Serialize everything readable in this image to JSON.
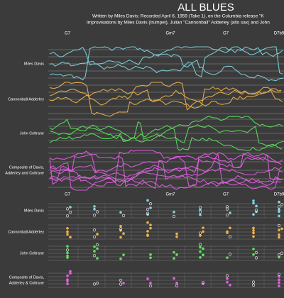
{
  "header": {
    "title": "ALL BLUES",
    "subtitle": [
      "Written by Miles Davis; Recorded April 6, 1959 (Take 1), on the Columbia release \"K",
      "Improvisations by Miles Davis (trumpet), Julian \"Cannonball\" Adderley (alto sax) and John"
    ]
  },
  "top": {
    "chords": [
      "G7",
      "Gm7",
      "G7",
      "D7b9"
    ],
    "rows": [
      [
        "Miles Davis"
      ],
      [
        "Cannonball Adderley"
      ],
      [
        "John Coltrane"
      ],
      [
        "Composite of Davis,",
        "Adderley and Coltrane"
      ]
    ]
  },
  "bottom": {
    "chords": [
      "G7",
      "Gm7",
      "G7",
      "D7b9"
    ],
    "rows": [
      [
        "Miles Davis"
      ],
      [
        "Cannonball Adderley"
      ],
      [
        "John Coltrane"
      ],
      [
        "Composite of Davis,",
        "Adderley & Coltrane"
      ]
    ]
  }
}
